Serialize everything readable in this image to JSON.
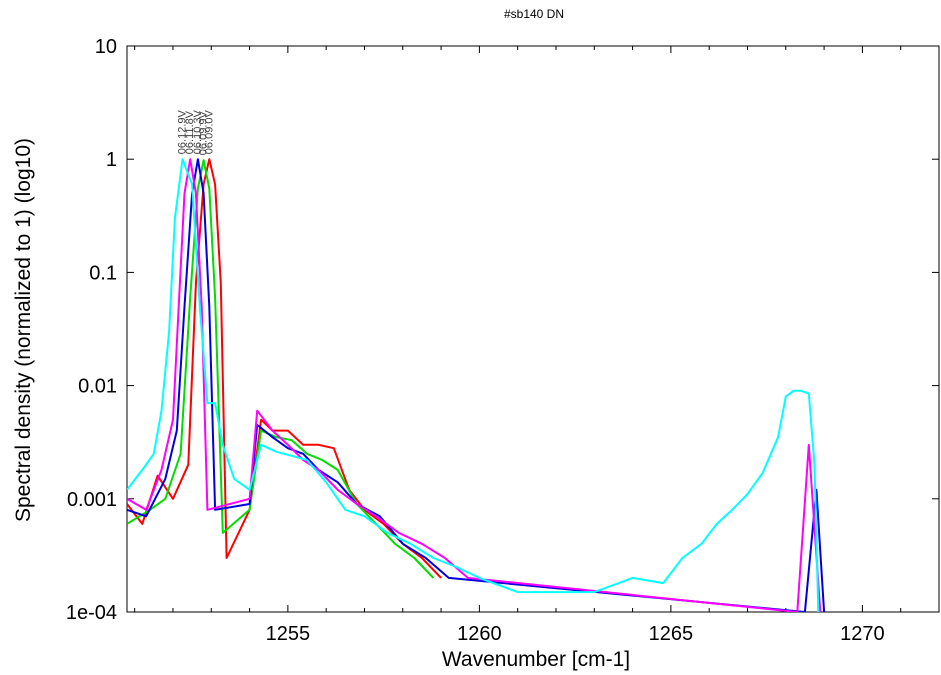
{
  "chart_data": {
    "type": "line",
    "title": "#sb140 DN",
    "xlabel": "Wavenumber [cm-1]",
    "ylabel": "Spectral density (normalized to 1) (log10)",
    "xlim": [
      1250.8,
      1272
    ],
    "ylim": [
      0.0001,
      10
    ],
    "yscale": "log10",
    "x_ticks": [
      1255,
      1260,
      1265,
      1270
    ],
    "x_tick_labels": [
      "1255",
      "1260",
      "1265",
      "1270"
    ],
    "y_ticks": [
      10,
      1,
      0.1,
      0.01,
      0.001,
      0.0001
    ],
    "y_tick_labels": [
      "10",
      "1",
      "0.1",
      "0.01",
      "0.001",
      "1e-04"
    ],
    "grid": false,
    "annotations": [
      "06.12.9V",
      "06.11.8V",
      "06.10.3V",
      "06.09.9V",
      "06.09.0V"
    ],
    "series": [
      {
        "color": "#ff0000",
        "peak": {
          "x": 1252.95,
          "y": 1.0
        },
        "points": [
          [
            1250.8,
            0.0009
          ],
          [
            1251.2,
            0.0006
          ],
          [
            1251.6,
            0.0016
          ],
          [
            1252.0,
            0.001
          ],
          [
            1252.4,
            0.002
          ],
          [
            1252.6,
            0.08
          ],
          [
            1252.8,
            0.6
          ],
          [
            1252.95,
            1.0
          ],
          [
            1253.1,
            0.6
          ],
          [
            1253.25,
            0.08
          ],
          [
            1253.4,
            0.0003
          ],
          [
            1254.0,
            0.0008
          ],
          [
            1254.3,
            0.005
          ],
          [
            1254.6,
            0.004
          ],
          [
            1255.0,
            0.004
          ],
          [
            1255.4,
            0.003
          ],
          [
            1255.8,
            0.003
          ],
          [
            1256.2,
            0.0028
          ],
          [
            1256.6,
            0.0012
          ],
          [
            1257.0,
            0.0008
          ],
          [
            1257.5,
            0.0006
          ],
          [
            1258.0,
            0.0004
          ],
          [
            1258.5,
            0.0003
          ],
          [
            1259.0,
            0.0002
          ]
        ]
      },
      {
        "color": "#00dd00",
        "peak": {
          "x": 1252.8,
          "y": 0.98
        },
        "points": [
          [
            1250.8,
            0.0006
          ],
          [
            1251.4,
            0.0008
          ],
          [
            1251.8,
            0.001
          ],
          [
            1252.2,
            0.0025
          ],
          [
            1252.45,
            0.06
          ],
          [
            1252.65,
            0.55
          ],
          [
            1252.8,
            0.98
          ],
          [
            1252.95,
            0.55
          ],
          [
            1253.1,
            0.06
          ],
          [
            1253.3,
            0.0005
          ],
          [
            1254.0,
            0.0008
          ],
          [
            1254.3,
            0.004
          ],
          [
            1254.7,
            0.0035
          ],
          [
            1255.1,
            0.0033
          ],
          [
            1255.5,
            0.0025
          ],
          [
            1255.9,
            0.0022
          ],
          [
            1256.3,
            0.0018
          ],
          [
            1256.8,
            0.0009
          ],
          [
            1257.3,
            0.0006
          ],
          [
            1257.8,
            0.0004
          ],
          [
            1258.3,
            0.0003
          ],
          [
            1258.8,
            0.0002
          ]
        ]
      },
      {
        "color": "#0000dd",
        "peak": {
          "x": 1252.65,
          "y": 1.0
        },
        "points": [
          [
            1250.8,
            0.0008
          ],
          [
            1251.3,
            0.0007
          ],
          [
            1251.8,
            0.0015
          ],
          [
            1252.1,
            0.004
          ],
          [
            1252.3,
            0.05
          ],
          [
            1252.5,
            0.5
          ],
          [
            1252.65,
            1.0
          ],
          [
            1252.8,
            0.5
          ],
          [
            1252.95,
            0.05
          ],
          [
            1253.1,
            0.0008
          ],
          [
            1254.0,
            0.0009
          ],
          [
            1254.2,
            0.0045
          ],
          [
            1254.6,
            0.0035
          ],
          [
            1255.0,
            0.0028
          ],
          [
            1255.4,
            0.0025
          ],
          [
            1255.8,
            0.0018
          ],
          [
            1256.3,
            0.0014
          ],
          [
            1256.8,
            0.0009
          ],
          [
            1257.4,
            0.0007
          ],
          [
            1258.0,
            0.0004
          ],
          [
            1258.6,
            0.0003
          ],
          [
            1259.2,
            0.0002
          ],
          [
            1268.5,
            0.0001
          ],
          [
            1268.8,
            0.0012
          ],
          [
            1269.0,
            0.0001
          ]
        ]
      },
      {
        "color": "#ff00ff",
        "peak": {
          "x": 1252.45,
          "y": 1.0
        },
        "points": [
          [
            1250.8,
            0.001
          ],
          [
            1251.3,
            0.0008
          ],
          [
            1251.7,
            0.0018
          ],
          [
            1252.0,
            0.005
          ],
          [
            1252.15,
            0.05
          ],
          [
            1252.3,
            0.5
          ],
          [
            1252.45,
            1.0
          ],
          [
            1252.6,
            0.5
          ],
          [
            1252.75,
            0.05
          ],
          [
            1252.9,
            0.0008
          ],
          [
            1254.0,
            0.001
          ],
          [
            1254.2,
            0.006
          ],
          [
            1254.6,
            0.004
          ],
          [
            1255.0,
            0.003
          ],
          [
            1255.4,
            0.0022
          ],
          [
            1255.8,
            0.0018
          ],
          [
            1256.3,
            0.0012
          ],
          [
            1256.8,
            0.0009
          ],
          [
            1257.3,
            0.0007
          ],
          [
            1257.9,
            0.0005
          ],
          [
            1258.5,
            0.0004
          ],
          [
            1259.1,
            0.0003
          ],
          [
            1259.7,
            0.0002
          ],
          [
            1268.3,
            0.0001
          ],
          [
            1268.6,
            0.003
          ],
          [
            1268.9,
            0.0001
          ]
        ]
      },
      {
        "color": "#00ffff",
        "peak": {
          "x": 1252.25,
          "y": 1.0
        },
        "points": [
          [
            1250.8,
            0.0012
          ],
          [
            1251.2,
            0.0018
          ],
          [
            1251.5,
            0.0025
          ],
          [
            1251.7,
            0.006
          ],
          [
            1251.9,
            0.03
          ],
          [
            1252.05,
            0.3
          ],
          [
            1252.25,
            1.0
          ],
          [
            1252.5,
            0.6
          ],
          [
            1252.7,
            0.05
          ],
          [
            1252.9,
            0.007
          ],
          [
            1253.1,
            0.007
          ],
          [
            1253.3,
            0.003
          ],
          [
            1253.6,
            0.0015
          ],
          [
            1254.0,
            0.0012
          ],
          [
            1254.3,
            0.003
          ],
          [
            1254.7,
            0.0026
          ],
          [
            1255.1,
            0.0024
          ],
          [
            1255.5,
            0.0022
          ],
          [
            1256.0,
            0.0014
          ],
          [
            1256.5,
            0.0008
          ],
          [
            1257.0,
            0.0007
          ],
          [
            1257.6,
            0.0005
          ],
          [
            1258.2,
            0.0004
          ],
          [
            1258.8,
            0.0003
          ],
          [
            1259.4,
            0.00025
          ],
          [
            1260.0,
            0.0002
          ],
          [
            1261.0,
            0.00015
          ],
          [
            1262.0,
            0.00015
          ],
          [
            1263.0,
            0.00015
          ],
          [
            1264.0,
            0.0002
          ],
          [
            1264.8,
            0.00018
          ],
          [
            1265.3,
            0.0003
          ],
          [
            1265.8,
            0.0004
          ],
          [
            1266.2,
            0.0006
          ],
          [
            1266.6,
            0.0008
          ],
          [
            1267.0,
            0.0011
          ],
          [
            1267.4,
            0.0017
          ],
          [
            1267.8,
            0.0035
          ],
          [
            1268.0,
            0.008
          ],
          [
            1268.2,
            0.009
          ],
          [
            1268.4,
            0.009
          ],
          [
            1268.6,
            0.0085
          ],
          [
            1268.75,
            0.002
          ],
          [
            1268.85,
            0.0001
          ]
        ]
      }
    ]
  }
}
